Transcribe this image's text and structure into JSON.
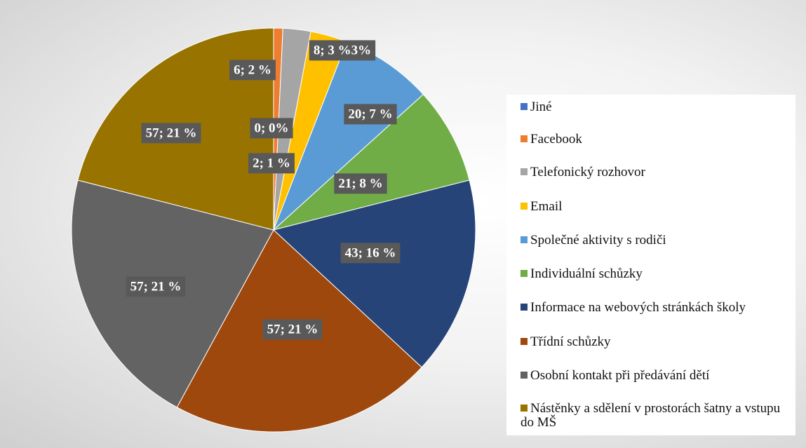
{
  "chart_data": {
    "type": "pie",
    "categories": [
      "Jiné",
      "Facebook",
      "Telefonický rozhovor",
      "Email",
      "Společné aktivity s rodiči",
      "Individuální schůzky",
      "Informace na webových stránkách školy",
      "Třídní schůzky",
      "Osobní kontakt při předávání dětí",
      "Nástěnky a sdělení v prostorách šatny a vstupu do MŠ"
    ],
    "values": [
      0,
      2,
      6,
      8,
      20,
      21,
      43,
      57,
      57,
      57
    ],
    "value_labels": [
      "0; 0%",
      "2; 1 %",
      "6; 2 %",
      "8; 3 %3%",
      "20; 7 %",
      "21; 8 %",
      "43; 16 %",
      "57; 21 %",
      "57; 21 %",
      "57; 21 %"
    ],
    "colors": [
      "#4472c4",
      "#ed7d31",
      "#a5a5a5",
      "#ffc000",
      "#5b9bd5",
      "#70ad47",
      "#264478",
      "#9e480e",
      "#636363",
      "#997300"
    ],
    "legend": "right"
  }
}
